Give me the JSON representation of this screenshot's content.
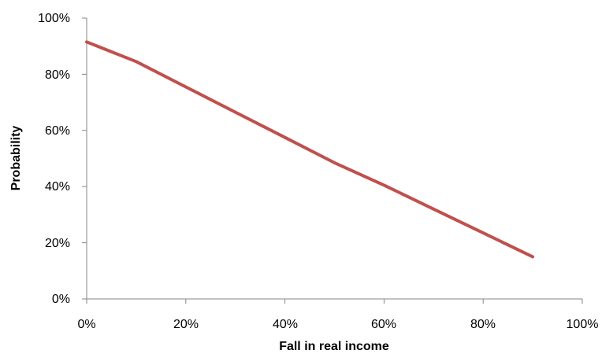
{
  "chart_data": {
    "type": "line",
    "title": "",
    "xlabel": "Fall in real income",
    "ylabel": "Probability",
    "xlim": [
      0,
      100
    ],
    "ylim": [
      0,
      100
    ],
    "x_ticks": [
      "0%",
      "20%",
      "40%",
      "60%",
      "80%",
      "100%"
    ],
    "y_ticks": [
      "0%",
      "20%",
      "40%",
      "60%",
      "80%",
      "100%"
    ],
    "grid": false,
    "legend": "none",
    "series": [
      {
        "color": "#C0504D",
        "x": [
          0,
          10,
          20,
          30,
          40,
          50,
          60,
          70,
          80,
          90
        ],
        "y": [
          91.5,
          84.5,
          75.5,
          66.5,
          57.5,
          48.5,
          40.5,
          32,
          23.5,
          15
        ]
      }
    ]
  }
}
